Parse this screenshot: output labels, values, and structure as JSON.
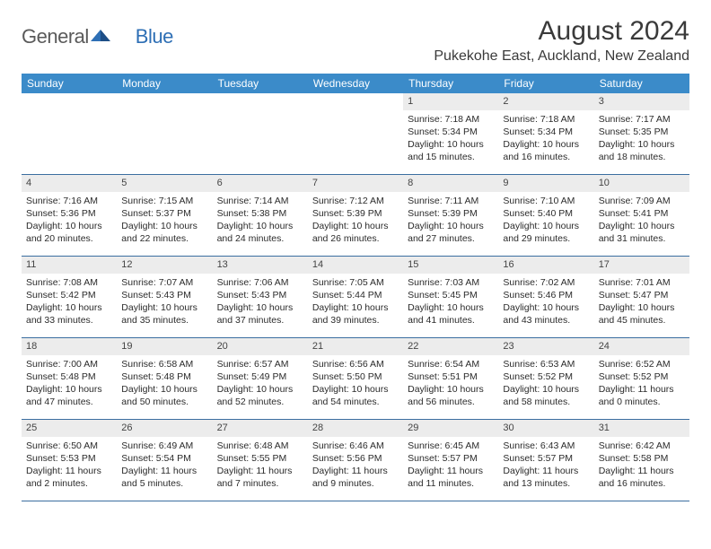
{
  "brand": {
    "name_part1": "General",
    "name_part2": "Blue"
  },
  "colors": {
    "header_bar": "#3b8bc9",
    "row_divider": "#3b6ea0",
    "daynum_bg": "#ececec",
    "page_bg": "#ffffff",
    "title_color": "#3a3a3a",
    "body_text": "#2b2b2b",
    "logo_gray": "#5a5a5a",
    "logo_blue": "#2e6fb5"
  },
  "title": "August 2024",
  "subtitle": "Pukekohe East, Auckland, New Zealand",
  "days_of_week": [
    "Sunday",
    "Monday",
    "Tuesday",
    "Wednesday",
    "Thursday",
    "Friday",
    "Saturday"
  ],
  "weeks": [
    [
      null,
      null,
      null,
      null,
      {
        "n": "1",
        "sr": "Sunrise: 7:18 AM",
        "ss": "Sunset: 5:34 PM",
        "dl1": "Daylight: 10 hours",
        "dl2": "and 15 minutes."
      },
      {
        "n": "2",
        "sr": "Sunrise: 7:18 AM",
        "ss": "Sunset: 5:34 PM",
        "dl1": "Daylight: 10 hours",
        "dl2": "and 16 minutes."
      },
      {
        "n": "3",
        "sr": "Sunrise: 7:17 AM",
        "ss": "Sunset: 5:35 PM",
        "dl1": "Daylight: 10 hours",
        "dl2": "and 18 minutes."
      }
    ],
    [
      {
        "n": "4",
        "sr": "Sunrise: 7:16 AM",
        "ss": "Sunset: 5:36 PM",
        "dl1": "Daylight: 10 hours",
        "dl2": "and 20 minutes."
      },
      {
        "n": "5",
        "sr": "Sunrise: 7:15 AM",
        "ss": "Sunset: 5:37 PM",
        "dl1": "Daylight: 10 hours",
        "dl2": "and 22 minutes."
      },
      {
        "n": "6",
        "sr": "Sunrise: 7:14 AM",
        "ss": "Sunset: 5:38 PM",
        "dl1": "Daylight: 10 hours",
        "dl2": "and 24 minutes."
      },
      {
        "n": "7",
        "sr": "Sunrise: 7:12 AM",
        "ss": "Sunset: 5:39 PM",
        "dl1": "Daylight: 10 hours",
        "dl2": "and 26 minutes."
      },
      {
        "n": "8",
        "sr": "Sunrise: 7:11 AM",
        "ss": "Sunset: 5:39 PM",
        "dl1": "Daylight: 10 hours",
        "dl2": "and 27 minutes."
      },
      {
        "n": "9",
        "sr": "Sunrise: 7:10 AM",
        "ss": "Sunset: 5:40 PM",
        "dl1": "Daylight: 10 hours",
        "dl2": "and 29 minutes."
      },
      {
        "n": "10",
        "sr": "Sunrise: 7:09 AM",
        "ss": "Sunset: 5:41 PM",
        "dl1": "Daylight: 10 hours",
        "dl2": "and 31 minutes."
      }
    ],
    [
      {
        "n": "11",
        "sr": "Sunrise: 7:08 AM",
        "ss": "Sunset: 5:42 PM",
        "dl1": "Daylight: 10 hours",
        "dl2": "and 33 minutes."
      },
      {
        "n": "12",
        "sr": "Sunrise: 7:07 AM",
        "ss": "Sunset: 5:43 PM",
        "dl1": "Daylight: 10 hours",
        "dl2": "and 35 minutes."
      },
      {
        "n": "13",
        "sr": "Sunrise: 7:06 AM",
        "ss": "Sunset: 5:43 PM",
        "dl1": "Daylight: 10 hours",
        "dl2": "and 37 minutes."
      },
      {
        "n": "14",
        "sr": "Sunrise: 7:05 AM",
        "ss": "Sunset: 5:44 PM",
        "dl1": "Daylight: 10 hours",
        "dl2": "and 39 minutes."
      },
      {
        "n": "15",
        "sr": "Sunrise: 7:03 AM",
        "ss": "Sunset: 5:45 PM",
        "dl1": "Daylight: 10 hours",
        "dl2": "and 41 minutes."
      },
      {
        "n": "16",
        "sr": "Sunrise: 7:02 AM",
        "ss": "Sunset: 5:46 PM",
        "dl1": "Daylight: 10 hours",
        "dl2": "and 43 minutes."
      },
      {
        "n": "17",
        "sr": "Sunrise: 7:01 AM",
        "ss": "Sunset: 5:47 PM",
        "dl1": "Daylight: 10 hours",
        "dl2": "and 45 minutes."
      }
    ],
    [
      {
        "n": "18",
        "sr": "Sunrise: 7:00 AM",
        "ss": "Sunset: 5:48 PM",
        "dl1": "Daylight: 10 hours",
        "dl2": "and 47 minutes."
      },
      {
        "n": "19",
        "sr": "Sunrise: 6:58 AM",
        "ss": "Sunset: 5:48 PM",
        "dl1": "Daylight: 10 hours",
        "dl2": "and 50 minutes."
      },
      {
        "n": "20",
        "sr": "Sunrise: 6:57 AM",
        "ss": "Sunset: 5:49 PM",
        "dl1": "Daylight: 10 hours",
        "dl2": "and 52 minutes."
      },
      {
        "n": "21",
        "sr": "Sunrise: 6:56 AM",
        "ss": "Sunset: 5:50 PM",
        "dl1": "Daylight: 10 hours",
        "dl2": "and 54 minutes."
      },
      {
        "n": "22",
        "sr": "Sunrise: 6:54 AM",
        "ss": "Sunset: 5:51 PM",
        "dl1": "Daylight: 10 hours",
        "dl2": "and 56 minutes."
      },
      {
        "n": "23",
        "sr": "Sunrise: 6:53 AM",
        "ss": "Sunset: 5:52 PM",
        "dl1": "Daylight: 10 hours",
        "dl2": "and 58 minutes."
      },
      {
        "n": "24",
        "sr": "Sunrise: 6:52 AM",
        "ss": "Sunset: 5:52 PM",
        "dl1": "Daylight: 11 hours",
        "dl2": "and 0 minutes."
      }
    ],
    [
      {
        "n": "25",
        "sr": "Sunrise: 6:50 AM",
        "ss": "Sunset: 5:53 PM",
        "dl1": "Daylight: 11 hours",
        "dl2": "and 2 minutes."
      },
      {
        "n": "26",
        "sr": "Sunrise: 6:49 AM",
        "ss": "Sunset: 5:54 PM",
        "dl1": "Daylight: 11 hours",
        "dl2": "and 5 minutes."
      },
      {
        "n": "27",
        "sr": "Sunrise: 6:48 AM",
        "ss": "Sunset: 5:55 PM",
        "dl1": "Daylight: 11 hours",
        "dl2": "and 7 minutes."
      },
      {
        "n": "28",
        "sr": "Sunrise: 6:46 AM",
        "ss": "Sunset: 5:56 PM",
        "dl1": "Daylight: 11 hours",
        "dl2": "and 9 minutes."
      },
      {
        "n": "29",
        "sr": "Sunrise: 6:45 AM",
        "ss": "Sunset: 5:57 PM",
        "dl1": "Daylight: 11 hours",
        "dl2": "and 11 minutes."
      },
      {
        "n": "30",
        "sr": "Sunrise: 6:43 AM",
        "ss": "Sunset: 5:57 PM",
        "dl1": "Daylight: 11 hours",
        "dl2": "and 13 minutes."
      },
      {
        "n": "31",
        "sr": "Sunrise: 6:42 AM",
        "ss": "Sunset: 5:58 PM",
        "dl1": "Daylight: 11 hours",
        "dl2": "and 16 minutes."
      }
    ]
  ]
}
